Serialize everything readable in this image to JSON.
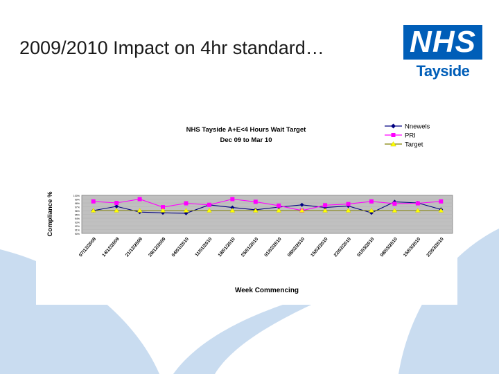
{
  "slide": {
    "title": "2009/2010 Impact on 4hr standard…",
    "logo": {
      "brand": "NHS",
      "subtitle": "Tayside"
    }
  },
  "colors": {
    "brand": "#005eb8",
    "swoosh": "#c9dcf0",
    "plot_area": "#c0c0c0",
    "series_ninewells": "#000080",
    "series_pri": "#ff00ff",
    "series_target": "#ffff00",
    "target_line": "#808000"
  },
  "chart_data": {
    "type": "line",
    "title": "NHS Tayside A+E<4 Hours Wait Target",
    "subtitle": "Dec 09 to Mar 10",
    "xlabel": "Week Commencing",
    "ylabel": "Compliance %",
    "ylim": [
      90,
      100
    ],
    "yticks": [
      "100%",
      "99%",
      "98%",
      "97%",
      "96%",
      "95%",
      "94%",
      "93%",
      "92%",
      "91%",
      "90%"
    ],
    "categories": [
      "07/12/2009",
      "14/12/2009",
      "21/12/2009",
      "28/12/2009",
      "04/01/2010",
      "11/01/2010",
      "18/01/2010",
      "25/01/2010",
      "01/02/2010",
      "08/02/2010",
      "15/02/2010",
      "22/02/2010",
      "01/03/2010",
      "08/03/2010",
      "15/03/2010",
      "22/03/2010"
    ],
    "legend_position": "top-right",
    "series": [
      {
        "name": "Nnewels",
        "marker": "diamond",
        "color": "#000080",
        "values": [
          96.0,
          97.1,
          95.6,
          95.4,
          95.3,
          97.5,
          96.8,
          96.2,
          96.9,
          97.5,
          96.8,
          97.2,
          95.4,
          98.3,
          98.0,
          96.3
        ]
      },
      {
        "name": "PRI",
        "marker": "square",
        "color": "#ff00ff",
        "values": [
          98.4,
          98.0,
          99.0,
          96.9,
          97.9,
          97.5,
          99.0,
          98.3,
          97.3,
          96.0,
          97.4,
          97.7,
          98.4,
          97.8,
          97.9,
          98.4
        ]
      },
      {
        "name": "Target",
        "marker": "triangle",
        "color": "#ffff00",
        "values": [
          96.0,
          96.0,
          96.0,
          96.0,
          96.0,
          96.0,
          96.0,
          96.0,
          96.0,
          96.0,
          96.0,
          96.0,
          96.0,
          96.0,
          96.0,
          96.0
        ]
      }
    ]
  }
}
